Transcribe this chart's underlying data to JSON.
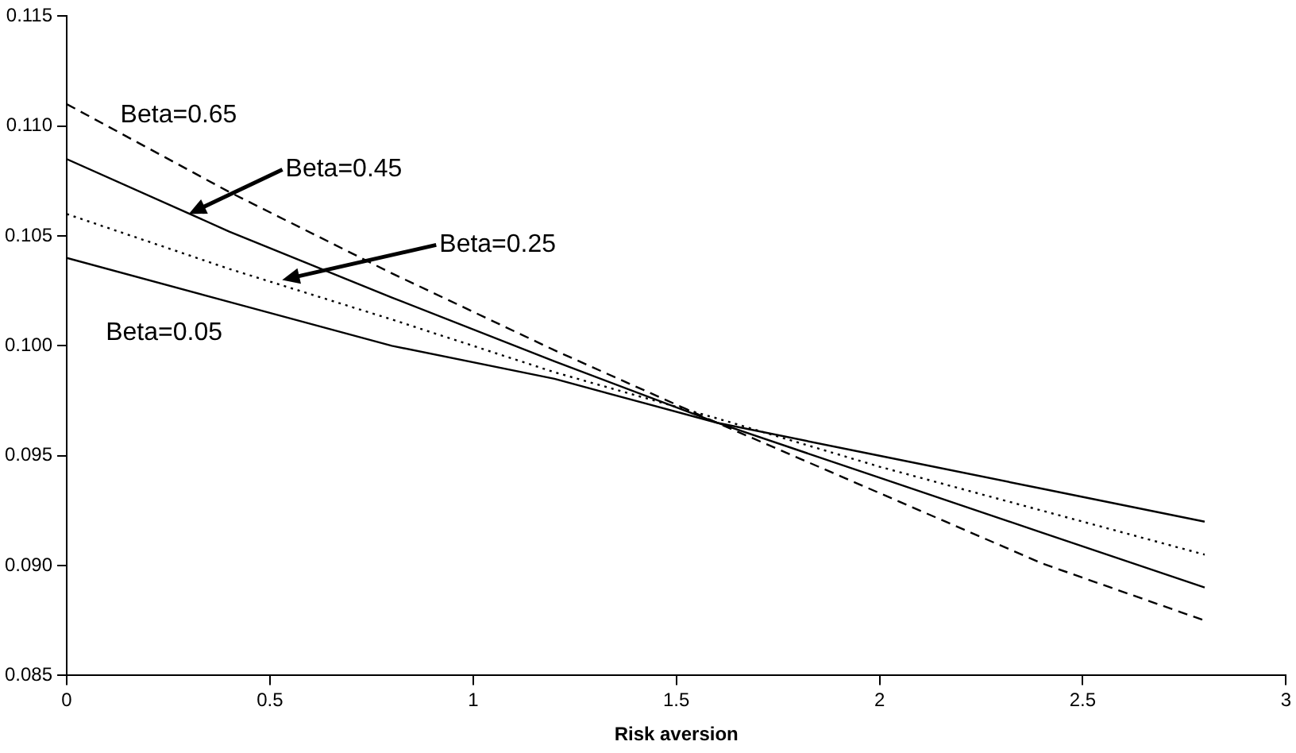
{
  "chart_data": {
    "type": "line",
    "xlabel": "Risk aversion",
    "x": [
      0,
      0.4,
      0.8,
      1.2,
      1.6,
      2.0,
      2.4,
      2.8
    ],
    "series": [
      {
        "color": "#000000",
        "line_style": "dashed",
        "values": [
          0.111,
          0.107,
          0.1033,
          0.0998,
          0.0965,
          0.0933,
          0.0901,
          0.0875
        ]
      },
      {
        "color": "#000000",
        "line_style": "solid",
        "values": [
          0.1085,
          0.1052,
          0.1022,
          0.0993,
          0.0965,
          0.094,
          0.0915,
          0.089
        ]
      },
      {
        "color": "#000000",
        "line_style": "dotted",
        "values": [
          0.106,
          0.1035,
          0.1012,
          0.0988,
          0.0967,
          0.0945,
          0.0925,
          0.0905
        ]
      },
      {
        "color": "#000000",
        "line_style": "solid",
        "values": [
          0.104,
          0.102,
          0.1,
          0.0985,
          0.0965,
          0.095,
          0.0935,
          0.092
        ]
      }
    ],
    "xlim": [
      0,
      3
    ],
    "xticks": [
      0,
      0.5,
      1,
      1.5,
      2,
      2.5,
      3
    ],
    "ylim": [
      0.085,
      0.115
    ],
    "yticks": [
      0.085,
      {
        "value": 0.09,
        "label": "0.090"
      },
      0.095,
      {
        "value": 0.1,
        "label": "0.100"
      },
      0.105,
      {
        "value": 0.11,
        "label": "0.110"
      },
      0.115
    ],
    "annotations": [
      "Beta=0.65",
      {
        "text": "Beta=0.45",
        "x": 0.3,
        "y": 0.106
      },
      {
        "text": "Beta=0.25",
        "x": 0.53,
        "y": 0.103
      },
      "Beta=0.05"
    ],
    "grid": false,
    "legend": false,
    "marker": "none"
  }
}
